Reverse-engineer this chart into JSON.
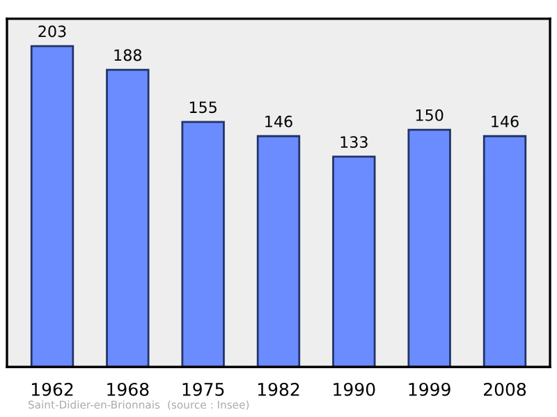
{
  "chart_data": {
    "type": "bar",
    "categories": [
      "1962",
      "1968",
      "1975",
      "1982",
      "1990",
      "1999",
      "2008"
    ],
    "values": [
      203,
      188,
      155,
      146,
      133,
      150,
      146
    ],
    "color": "#6b8cff",
    "data_labels": true,
    "grid": false,
    "annotations": [
      "Saint-Didier-en-Brionnais",
      "(source : Insee)"
    ]
  }
}
